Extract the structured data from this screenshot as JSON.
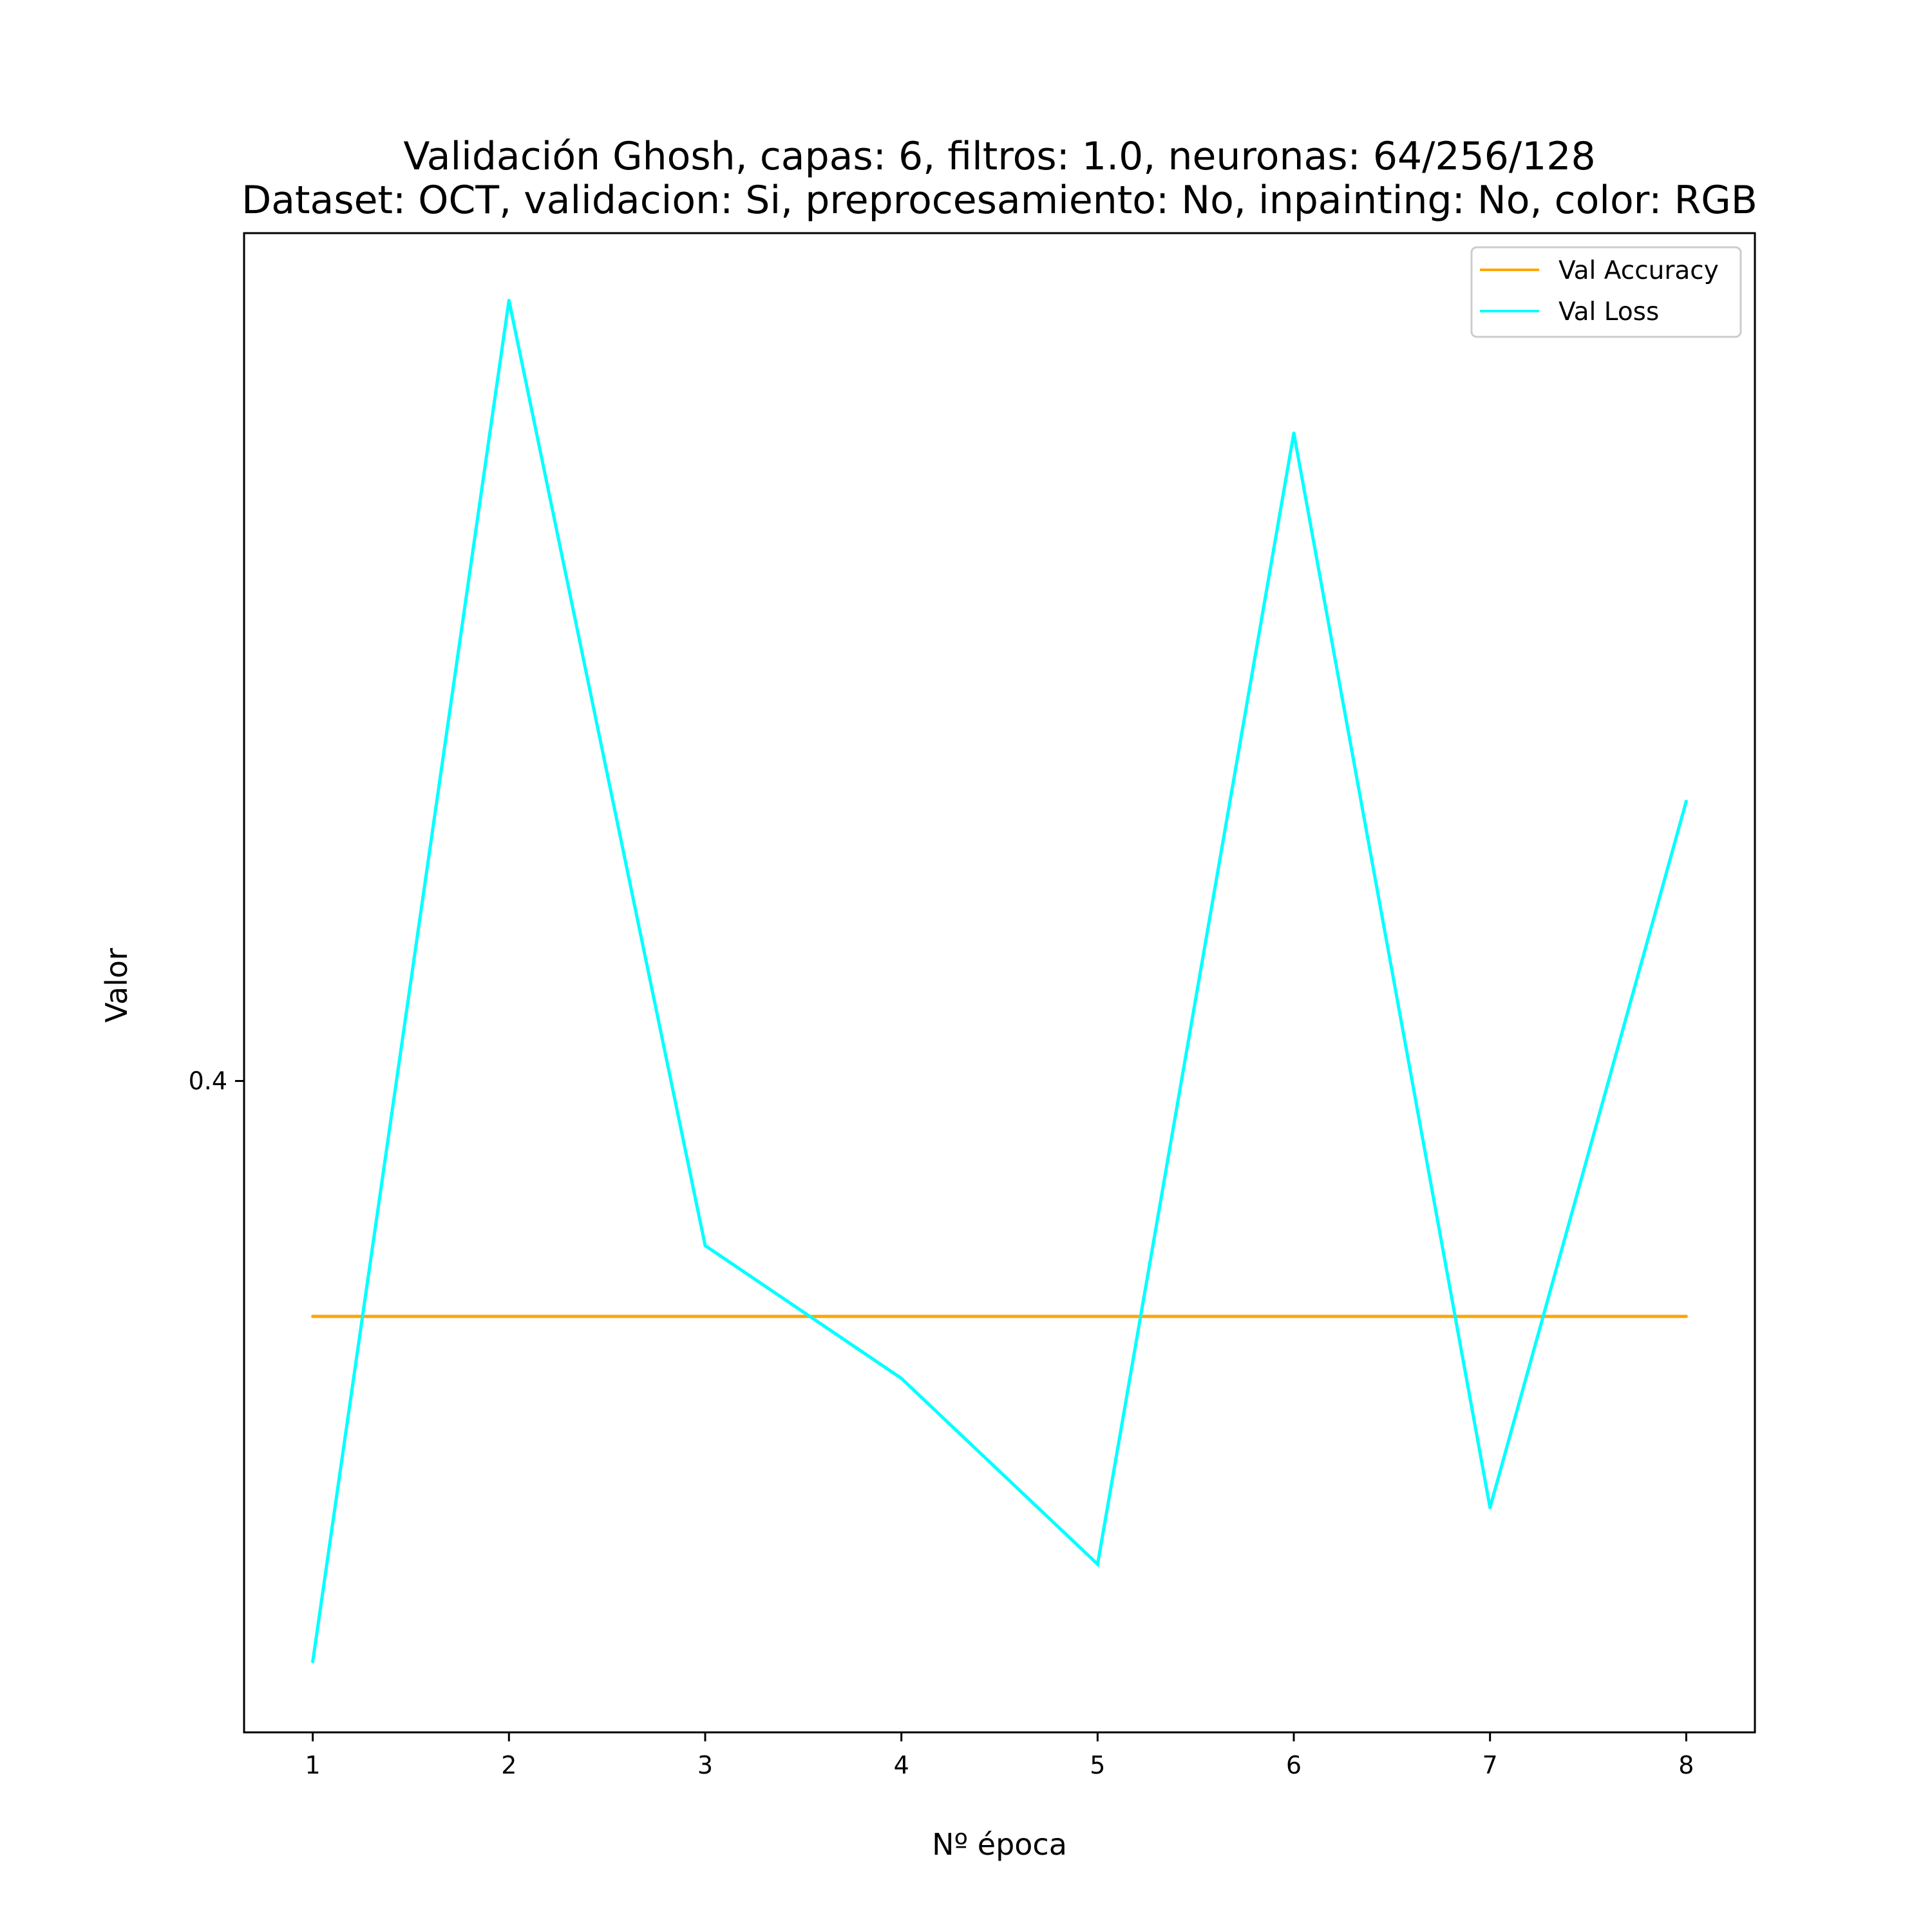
{
  "chart_data": {
    "type": "line",
    "title_line1": "Validación Ghosh, capas: 6, filtros: 1.0, neuronas: 64/256/128",
    "title_line2": "Dataset: OCT, validacion: Si, preprocesamiento: No, inpainting: No, color: RGB",
    "xlabel": "Nº época",
    "ylabel": "Valor",
    "x": [
      1,
      2,
      3,
      4,
      5,
      6,
      7,
      8
    ],
    "x_ticks": [
      "1",
      "2",
      "3",
      "4",
      "5",
      "6",
      "7",
      "8"
    ],
    "y_ticks": [
      {
        "value": 0.4,
        "label": "0.4"
      }
    ],
    "xlim": [
      0.65,
      8.35
    ],
    "ylim": [
      0.3632,
      0.4479
    ],
    "grid": false,
    "legend_position": "upper right",
    "series": [
      {
        "name": "Val Accuracy",
        "color": "#FFA500",
        "values": [
          0.3867,
          0.3867,
          0.3867,
          0.3867,
          0.3867,
          0.3867,
          0.3867,
          0.3867
        ]
      },
      {
        "name": "Val Loss",
        "color": "#00FFFF",
        "values": [
          0.3672,
          0.4441,
          0.3907,
          0.3832,
          0.3727,
          0.4366,
          0.3759,
          0.4158
        ]
      }
    ]
  }
}
